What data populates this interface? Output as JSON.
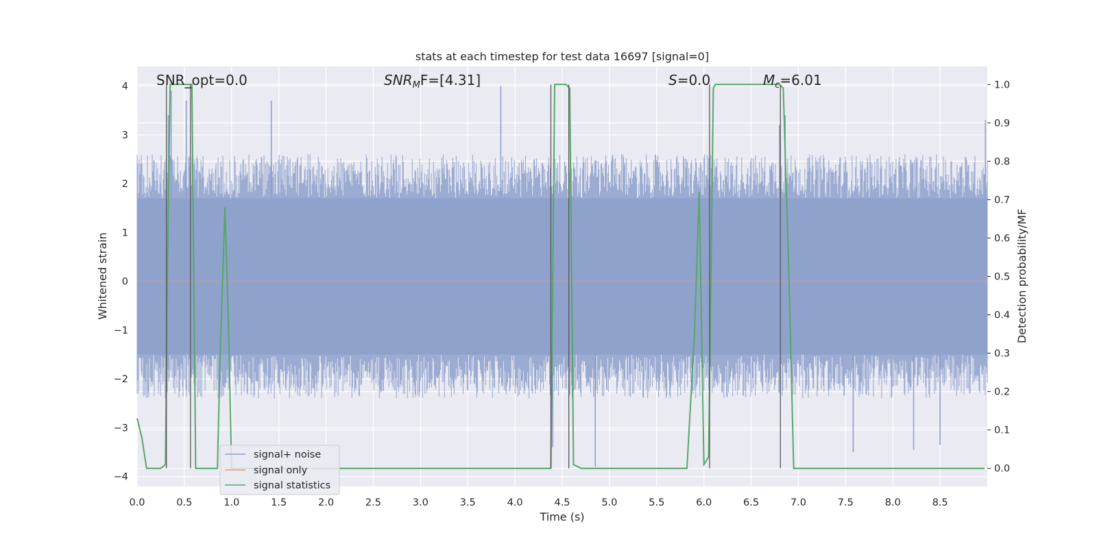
{
  "chart_data": {
    "type": "line",
    "title": "stats at each timestep for test data 16697 [signal=0]",
    "xlabel": "Time (s)",
    "ylabel": "Whitened strain",
    "y2label": "Detection probability/MF",
    "xlim": [
      0,
      9.0
    ],
    "ylim": [
      -4.2,
      4.4
    ],
    "y2lim": [
      -0.047,
      1.047
    ],
    "x_ticks": [
      0.0,
      0.5,
      1.0,
      1.5,
      2.0,
      2.5,
      3.0,
      3.5,
      4.0,
      4.5,
      5.0,
      5.5,
      6.0,
      6.5,
      7.0,
      7.5,
      8.0,
      8.5
    ],
    "x_tick_labels": [
      "0.0",
      "0.5",
      "1.0",
      "1.5",
      "2.0",
      "2.5",
      "3.0",
      "3.5",
      "4.0",
      "4.5",
      "5.0",
      "5.5",
      "6.0",
      "6.5",
      "7.0",
      "7.5",
      "8.0",
      "8.5"
    ],
    "y_ticks": [
      4,
      3,
      2,
      1,
      0,
      -1,
      -2,
      -3,
      -4
    ],
    "y_tick_labels": [
      "4",
      "3",
      "2",
      "1",
      "0",
      "−1",
      "−2",
      "−3",
      "−4"
    ],
    "y2_ticks": [
      1.0,
      0.9,
      0.8,
      0.7,
      0.6,
      0.5,
      0.4,
      0.3,
      0.2,
      0.1,
      0.0
    ],
    "y2_tick_labels": [
      "1.0",
      "0.9",
      "0.8",
      "0.7",
      "0.6",
      "0.5",
      "0.4",
      "0.3",
      "0.2",
      "0.1",
      "0.0"
    ],
    "grid": true,
    "legend_position": "lower-left",
    "annotations": {
      "snr_opt": "SNR_opt=0.0",
      "snr_mf_sym": "SNR",
      "snr_mf_sub": "M",
      "snr_mf_tail": "F=[4.31]",
      "s_sym": "S",
      "s_tail": "=0.0",
      "mc_sym": "M",
      "mc_sub": "c",
      "mc_tail": "=6.01"
    },
    "series": [
      {
        "name": "signal+ noise",
        "color": "#8da0cb",
        "axis": "left",
        "style": "noise",
        "x_range": [
          0,
          9.0
        ],
        "core_band": [
          -1.5,
          1.7
        ],
        "typical_peak_range": [
          -2.4,
          2.6
        ],
        "notable_spikes": [
          {
            "x": 0.33,
            "y": 3.4
          },
          {
            "x": 0.36,
            "y": 3.9
          },
          {
            "x": 0.52,
            "y": 3.7
          },
          {
            "x": 1.42,
            "y": 3.7
          },
          {
            "x": 3.85,
            "y": 4.0
          },
          {
            "x": 6.86,
            "y": 3.4
          },
          {
            "x": 8.98,
            "y": 3.3
          },
          {
            "x": 4.85,
            "y": -3.8
          },
          {
            "x": 4.4,
            "y": -3.4
          },
          {
            "x": 7.58,
            "y": -3.5
          },
          {
            "x": 8.22,
            "y": -3.45
          },
          {
            "x": 8.5,
            "y": -3.35
          },
          {
            "x": 6.8,
            "y": 3.2
          }
        ]
      },
      {
        "name": "signal only",
        "color": "#e8967a",
        "axis": "left",
        "values_const": 0.0
      },
      {
        "name": "signal statistics",
        "color": "#55a868",
        "axis": "right",
        "x": [
          0.0,
          0.05,
          0.1,
          0.15,
          0.2,
          0.25,
          0.3,
          0.32,
          0.35,
          0.38,
          0.42,
          0.46,
          0.5,
          0.54,
          0.58,
          0.62,
          0.66,
          0.7,
          0.75,
          0.8,
          0.85,
          0.88,
          0.93,
          0.97,
          1.0,
          1.05,
          1.1,
          1.2,
          1.5,
          2.0,
          3.0,
          4.0,
          4.38,
          4.42,
          4.48,
          4.54,
          4.58,
          4.62,
          4.7,
          4.8,
          5.0,
          5.5,
          5.82,
          5.9,
          5.95,
          6.0,
          6.05,
          6.1,
          6.12,
          6.2,
          6.4,
          6.6,
          6.8,
          6.84,
          6.9,
          6.95,
          7.2,
          8.0,
          8.5,
          8.97
        ],
        "values": [
          0.13,
          0.08,
          0.0,
          0.0,
          0.0,
          0.0,
          0.01,
          0.5,
          1.0,
          1.0,
          1.0,
          1.0,
          1.0,
          1.0,
          1.0,
          0.0,
          0.0,
          0.0,
          0.0,
          0.0,
          0.0,
          0.3,
          0.68,
          0.35,
          0.0,
          0.0,
          0.0,
          0.0,
          0.0,
          0.0,
          0.0,
          0.0,
          0.0,
          1.0,
          1.0,
          1.0,
          0.99,
          0.01,
          0.0,
          0.0,
          0.0,
          0.0,
          0.0,
          0.35,
          0.72,
          0.01,
          0.03,
          0.99,
          1.0,
          1.0,
          1.0,
          1.0,
          1.0,
          0.99,
          0.5,
          0.0,
          0.0,
          0.0,
          0.0,
          0.0
        ]
      }
    ],
    "vertical_markers_x": [
      0.31,
      0.565,
      4.38,
      4.57,
      6.06,
      6.81
    ]
  }
}
